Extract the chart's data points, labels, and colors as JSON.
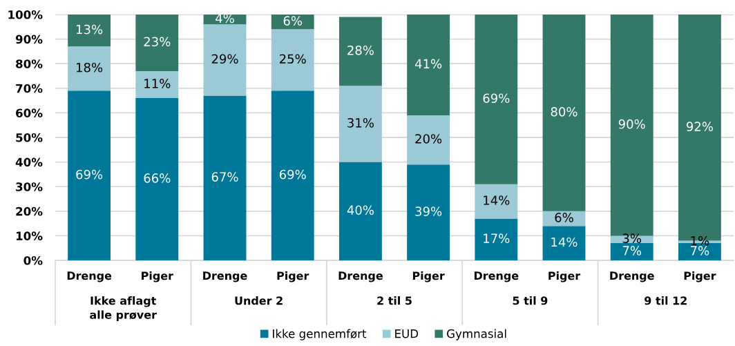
{
  "chart_data": {
    "type": "bar",
    "stacked": true,
    "categories": [
      "Drenge",
      "Piger",
      "Drenge",
      "Piger",
      "Drenge",
      "Piger",
      "Drenge",
      "Piger",
      "Drenge",
      "Piger"
    ],
    "annotations": [
      "Ikke aflagt\nalle prøver",
      "Under 2",
      "2 til 5",
      "5 til 9",
      "9 til 12"
    ],
    "series": [
      {
        "name": "Ikke gennemført",
        "color": "#007899",
        "values": [
          69,
          66,
          67,
          69,
          40,
          39,
          17,
          14,
          7,
          7
        ],
        "value_labels": [
          "69%",
          "66%",
          "67%",
          "69%",
          "40%",
          "39%",
          "17%",
          "14%",
          "7%",
          "7%"
        ]
      },
      {
        "name": "EUD",
        "color": "#9cc9d6",
        "values": [
          18,
          11,
          29,
          25,
          31,
          20,
          14,
          6,
          3,
          1
        ],
        "value_labels": [
          "18%",
          "11%",
          "29%",
          "25%",
          "31%",
          "20%",
          "14%",
          "6%",
          "3%",
          "1%"
        ]
      },
      {
        "name": "Gymnasial",
        "color": "#34786a",
        "values": [
          13,
          23,
          4,
          6,
          28,
          41,
          69,
          80,
          90,
          92
        ],
        "value_labels": [
          "13%",
          "23%",
          "4%",
          "6%",
          "28%",
          "41%",
          "69%",
          "80%",
          "90%",
          "92%"
        ]
      }
    ],
    "ylim": [
      0,
      100
    ],
    "yticks": [
      {
        "value": 0,
        "label": "0%"
      },
      {
        "value": 10,
        "label": "10%"
      },
      {
        "value": 20,
        "label": "20%"
      },
      {
        "value": 30,
        "label": "30%"
      },
      {
        "value": 40,
        "label": "40%"
      },
      {
        "value": 50,
        "label": "50%"
      },
      {
        "value": 60,
        "label": "60%"
      },
      {
        "value": 70,
        "label": "70%"
      },
      {
        "value": 80,
        "label": "80%"
      },
      {
        "value": 90,
        "label": "90%"
      },
      {
        "value": 100,
        "label": "100%"
      }
    ],
    "grid": "y",
    "legend": "bottom"
  }
}
